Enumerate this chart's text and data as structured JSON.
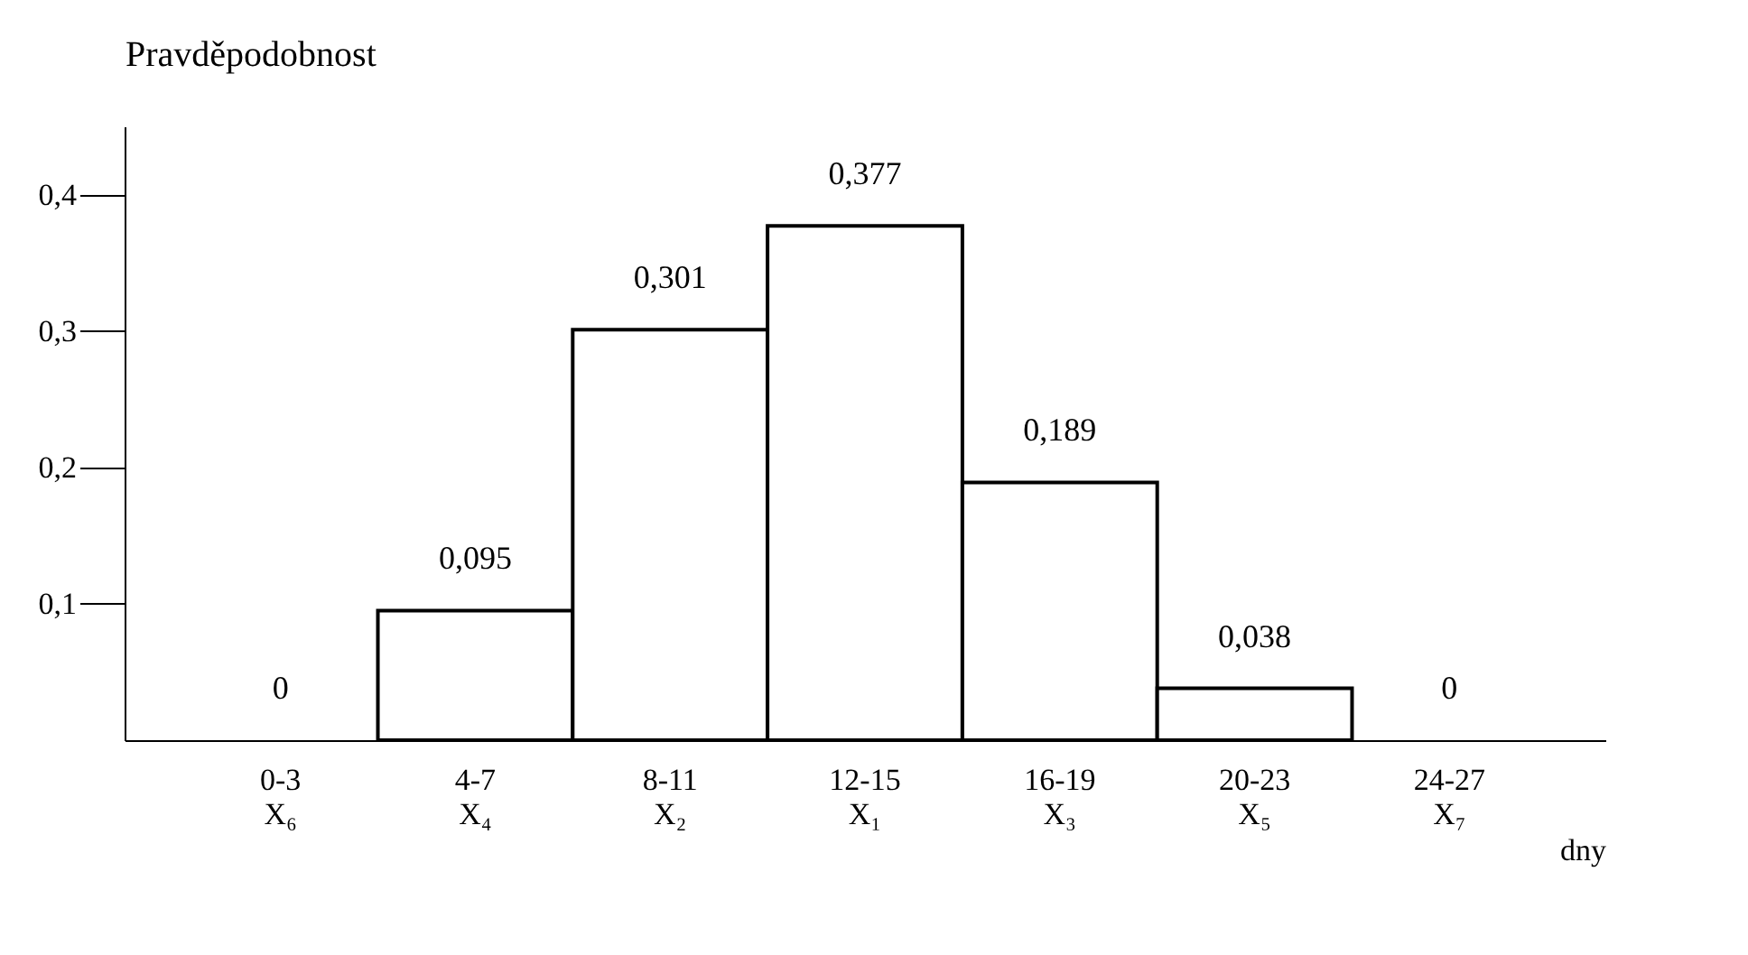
{
  "chart_data": {
    "type": "bar",
    "ylabel": "Pravděpodobnost",
    "xlabel": "dny",
    "categories": [
      "0-3 X₆",
      "4-7 X₄",
      "8-11 X₂",
      "12-15 X₁",
      "16-19 X₃",
      "20-23 X₅",
      "24-27 X₇"
    ],
    "values": [
      0,
      0.095,
      0.301,
      0.377,
      0.189,
      0.038,
      0
    ],
    "value_labels": [
      "0",
      "0,095",
      "0,301",
      "0,377",
      "0,189",
      "0,038",
      "0"
    ],
    "color": "#ffffff",
    "ylim": [
      0,
      0.45
    ],
    "yticks": [
      {
        "value": 0.1,
        "label": "0,1"
      },
      {
        "value": 0.2,
        "label": "0,2"
      },
      {
        "value": 0.3,
        "label": "0,3"
      },
      {
        "value": 0.4,
        "label": "0,4"
      }
    ],
    "grid": false
  }
}
